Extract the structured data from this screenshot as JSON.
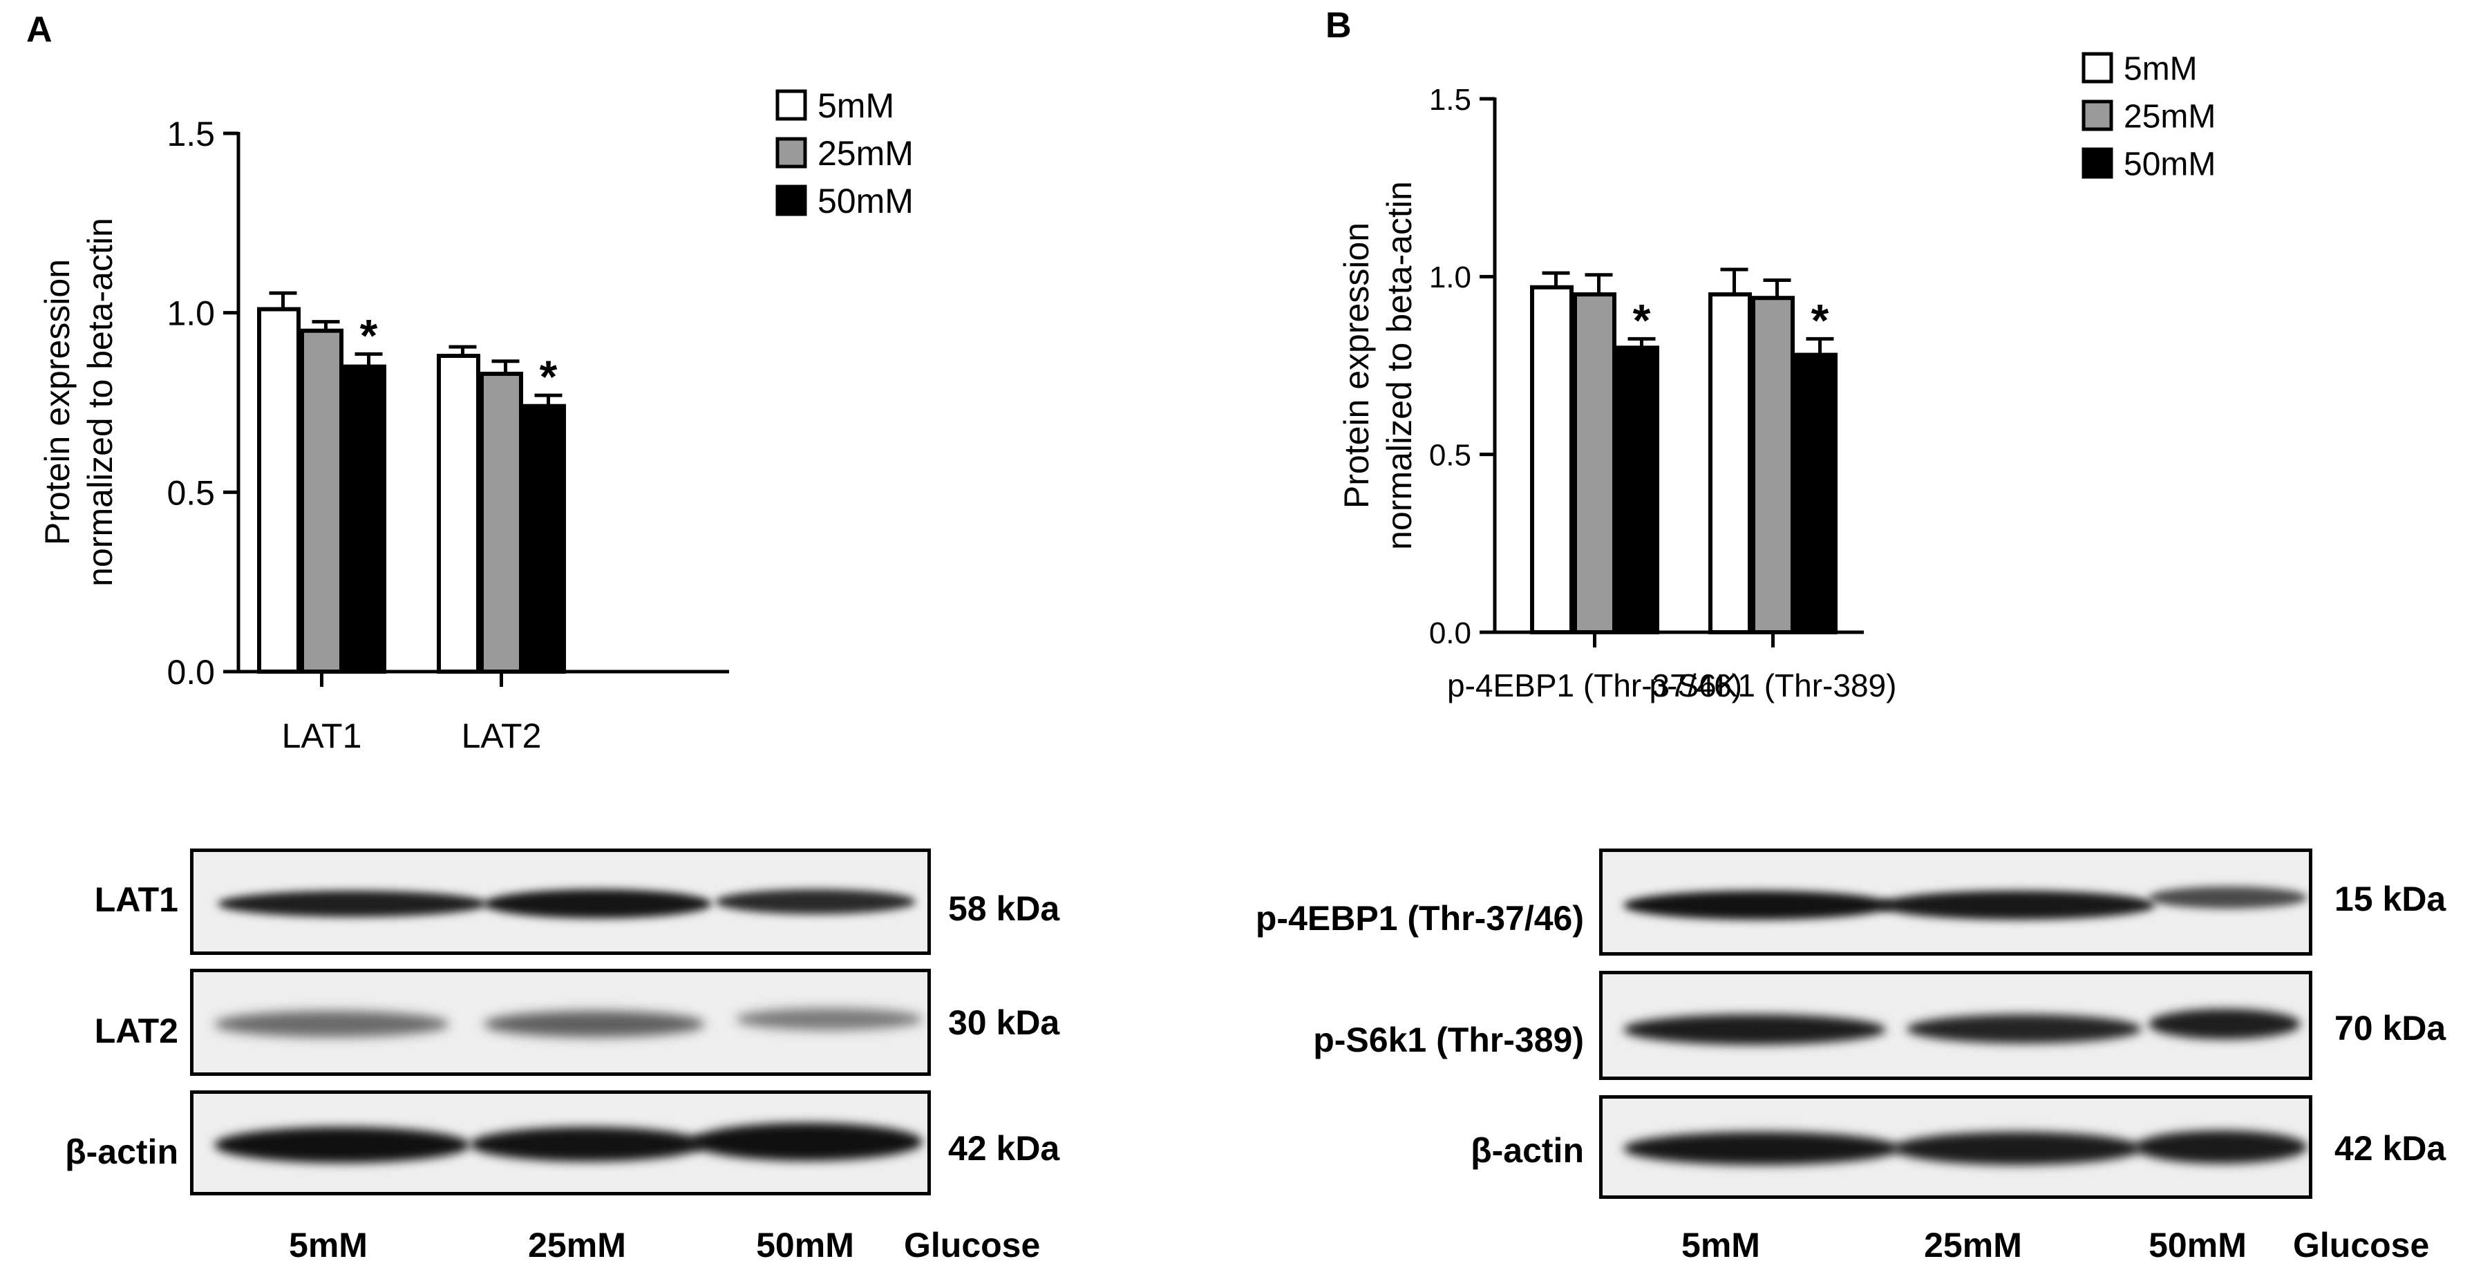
{
  "panels": {
    "a": {
      "letter": "A"
    },
    "b": {
      "letter": "B"
    }
  },
  "chart_data": [
    {
      "type": "bar",
      "ylabel_line1": "Protein expression",
      "ylabel_line2": "normalized to beta-actin",
      "ylim": [
        0,
        1.5
      ],
      "yticks": [
        "0.0",
        "0.5",
        "1.0",
        "1.5"
      ],
      "categories": [
        "LAT1",
        "LAT2"
      ],
      "series": [
        {
          "name": "5mM",
          "color": "#ffffff",
          "values": [
            1.01,
            0.88
          ],
          "errors": [
            0.045,
            0.025
          ]
        },
        {
          "name": "25mM",
          "color": "#9a9a9a",
          "values": [
            0.95,
            0.83
          ],
          "errors": [
            0.025,
            0.035
          ]
        },
        {
          "name": "50mM",
          "color": "#000000",
          "values": [
            0.85,
            0.74
          ],
          "errors": [
            0.035,
            0.03
          ]
        }
      ],
      "significance": [
        [
          false,
          false,
          true
        ],
        [
          false,
          false,
          true
        ]
      ],
      "significance_mark": "*",
      "legend_position": "top-right"
    },
    {
      "type": "bar",
      "ylabel_line1": "Protein expression",
      "ylabel_line2": "normalized to beta-actin",
      "ylim": [
        0,
        1.5
      ],
      "yticks": [
        "0.0",
        "0.5",
        "1.0",
        "1.5"
      ],
      "categories": [
        "p-4EBP1  (Thr-37/46)",
        "p-S6K1  (Thr-389)"
      ],
      "series": [
        {
          "name": "5mM",
          "color": "#ffffff",
          "values": [
            0.97,
            0.95
          ],
          "errors": [
            0.04,
            0.07
          ]
        },
        {
          "name": "25mM",
          "color": "#9a9a9a",
          "values": [
            0.95,
            0.94
          ],
          "errors": [
            0.055,
            0.05
          ]
        },
        {
          "name": "50mM",
          "color": "#000000",
          "values": [
            0.8,
            0.78
          ],
          "errors": [
            0.025,
            0.045
          ]
        }
      ],
      "significance": [
        [
          false,
          false,
          true
        ],
        [
          false,
          false,
          true
        ]
      ],
      "significance_mark": "*",
      "legend_position": "top-right"
    }
  ],
  "blots": {
    "a": {
      "rows": [
        {
          "label": "LAT1",
          "kda": "58 kDa"
        },
        {
          "label": "LAT2",
          "kda": "30 kDa"
        },
        {
          "label": "β-actin",
          "kda": "42 kDa"
        }
      ],
      "lanes": [
        "5mM",
        "25mM",
        "50mM"
      ],
      "condition": "Glucose"
    },
    "b": {
      "rows": [
        {
          "label": "p-4EBP1 (Thr-37/46)",
          "kda": "15 kDa"
        },
        {
          "label": "p-S6k1 (Thr-389)",
          "kda": "70 kDa"
        },
        {
          "label": "β-actin",
          "kda": "42 kDa"
        }
      ],
      "lanes": [
        "5mM",
        "25mM",
        "50mM"
      ],
      "condition": "Glucose"
    }
  }
}
